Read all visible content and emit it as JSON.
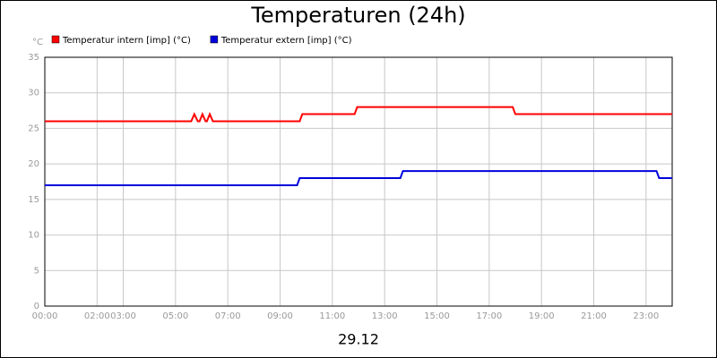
{
  "chart_data": {
    "type": "line",
    "title": "Temperaturen (24h)",
    "y_label": "°C",
    "xlabel": "29.12",
    "series": [
      {
        "name": "Temperatur intern [imp] (°C)",
        "color": "#ff0000",
        "x": [
          0,
          5.6,
          5.72,
          5.85,
          5.92,
          6.03,
          6.15,
          6.2,
          6.31,
          6.43,
          9.75,
          9.85,
          11.85,
          11.95,
          17.9,
          18.0,
          24
        ],
        "values": [
          26,
          26,
          27,
          26,
          26,
          27,
          26,
          26,
          27,
          26,
          26,
          27,
          27,
          28,
          28,
          27,
          27
        ]
      },
      {
        "name": "Temperatur extern [imp] (°C)",
        "color": "#0000dd",
        "x": [
          0,
          9.65,
          9.75,
          13.6,
          13.7,
          23.4,
          23.5,
          24
        ],
        "values": [
          17,
          17,
          18,
          18,
          19,
          19,
          18,
          18
        ]
      }
    ],
    "xlim": [
      0,
      24
    ],
    "xticks": [
      {
        "value": 0,
        "label": "00:00"
      },
      {
        "value": 2,
        "label": "02:00"
      },
      {
        "value": 3,
        "label": "03:00"
      },
      {
        "value": 5,
        "label": "05:00"
      },
      {
        "value": 7,
        "label": "07:00"
      },
      {
        "value": 9,
        "label": "09:00"
      },
      {
        "value": 11,
        "label": "11:00"
      },
      {
        "value": 13,
        "label": "13:00"
      },
      {
        "value": 15,
        "label": "15:00"
      },
      {
        "value": 17,
        "label": "17:00"
      },
      {
        "value": 19,
        "label": "19:00"
      },
      {
        "value": 21,
        "label": "21:00"
      },
      {
        "value": 23,
        "label": "23:00"
      }
    ],
    "ylim": [
      0,
      35
    ],
    "yticks": [
      0,
      5,
      10,
      15,
      20,
      25,
      30,
      35
    ],
    "grid": true
  }
}
